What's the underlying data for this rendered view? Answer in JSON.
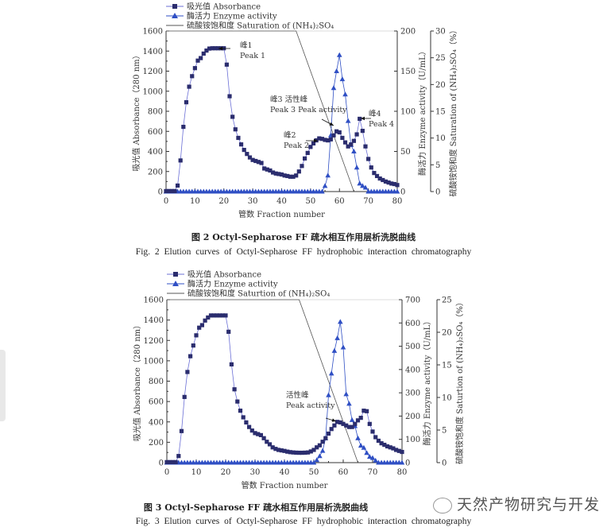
{
  "chart_data": [
    {
      "type": "line",
      "legend": [
        "吸光值 Absorbance",
        "酶活力 Enzyme activity",
        "硫酸铵饱和度 Saturation of (NH₄)₂SO₄"
      ],
      "xlabel": "管数 Fraction number",
      "ylabel": "吸光值 Absorbance（280 nm）",
      "y2label": "酶活力 Enzyme activity（U/mL）",
      "y3label": "硫酸铵饱和度 Saturation of (NH₄)₂SO₄（%）",
      "xlim": [
        0,
        80
      ],
      "xticks": [
        0,
        10,
        20,
        30,
        40,
        50,
        60,
        70,
        80
      ],
      "ylim": [
        0,
        1600
      ],
      "yticks": [
        0,
        200,
        400,
        600,
        800,
        1000,
        1200,
        1400,
        1600
      ],
      "y2lim": [
        0,
        200
      ],
      "y2ticks": [
        0,
        50,
        100,
        150,
        200
      ],
      "y3lim": [
        0,
        30
      ],
      "y3ticks": [
        0,
        5,
        10,
        15,
        20,
        25,
        30
      ],
      "x": [
        0,
        1,
        2,
        3,
        4,
        5,
        6,
        7,
        8,
        9,
        10,
        11,
        12,
        13,
        14,
        15,
        16,
        17,
        18,
        19,
        20,
        21,
        22,
        23,
        24,
        25,
        26,
        27,
        28,
        29,
        30,
        31,
        32,
        33,
        34,
        35,
        36,
        37,
        38,
        39,
        40,
        41,
        42,
        43,
        44,
        45,
        46,
        47,
        48,
        49,
        50,
        51,
        52,
        53,
        54,
        55,
        56,
        57,
        58,
        59,
        60,
        61,
        62,
        63,
        64,
        65,
        66,
        67,
        68,
        69,
        70,
        71,
        72,
        73,
        74,
        75,
        76,
        77,
        78,
        79,
        80
      ],
      "series": [
        {
          "name": "Absorbance",
          "axis": "y",
          "values": [
            5,
            5,
            5,
            5,
            60,
            310,
            645,
            890,
            1045,
            1150,
            1230,
            1305,
            1330,
            1375,
            1405,
            1425,
            1428,
            1428,
            1428,
            1428,
            1428,
            1265,
            950,
            745,
            620,
            535,
            470,
            415,
            375,
            340,
            315,
            305,
            295,
            285,
            230,
            220,
            210,
            190,
            180,
            175,
            170,
            160,
            155,
            148,
            148,
            160,
            200,
            255,
            330,
            385,
            445,
            480,
            510,
            530,
            525,
            515,
            510,
            520,
            560,
            600,
            590,
            535,
            490,
            450,
            470,
            505,
            570,
            725,
            605,
            450,
            325,
            240,
            185,
            155,
            130,
            115,
            100,
            90,
            80,
            75,
            65
          ]
        },
        {
          "name": "Enzyme activity",
          "axis": "y2",
          "values": [
            0,
            0,
            0,
            0,
            0,
            0,
            0,
            0,
            0,
            0,
            0,
            0,
            0,
            0,
            0,
            0,
            0,
            0,
            0,
            0,
            0,
            0,
            0,
            0,
            0,
            0,
            0,
            0,
            0,
            0,
            0,
            0,
            0,
            0,
            0,
            0,
            0,
            0,
            0,
            0,
            0,
            0,
            0,
            0,
            0,
            0,
            0,
            0,
            0,
            0,
            0,
            0,
            0,
            0,
            0,
            7,
            20,
            70,
            129,
            150,
            170,
            140,
            121,
            88,
            58,
            50,
            30,
            10,
            7,
            5,
            0,
            0,
            0,
            0,
            0,
            0,
            0,
            0,
            0,
            0,
            0
          ]
        },
        {
          "name": "Saturation",
          "axis": "y3",
          "points": [
            [
              0,
              30
            ],
            [
              45,
              30
            ],
            [
              65,
              0
            ]
          ]
        }
      ],
      "annotations": [
        {
          "cn": "峰1",
          "en": "Peak 1"
        },
        {
          "cn": "峰3  活性峰",
          "en": "Peak 3 Peak activity"
        },
        {
          "cn": "峰2",
          "en": "Peak 2"
        },
        {
          "cn": "峰4",
          "en": "Peak 4"
        }
      ],
      "caption_cn": "图 2    Octyl-Sepharose FF 疏水相互作用层析洗脱曲线",
      "caption_en": "Fig. 2    Elution curves of Octyl-Sepharose FF hydrophobic interaction chromatography"
    },
    {
      "type": "line",
      "legend": [
        "吸光值 Absorbance",
        "酶活力 Enzyme activity",
        "硫酸铵饱和度 Saturtion of (NH₄)₂SO₄"
      ],
      "xlabel": "管数 Fraction number",
      "ylabel": "吸光值 Absorbance（280 nm）",
      "y2label": "酶活力 Enzyme activity（U/mL）",
      "y3label": "硫酸铵饱和度 Saturtion of (NH₄)₂SO₄（%）",
      "xlim": [
        0,
        80
      ],
      "xticks": [
        0,
        10,
        20,
        30,
        40,
        50,
        60,
        70,
        80
      ],
      "ylim": [
        0,
        1600
      ],
      "yticks": [
        0,
        200,
        400,
        600,
        800,
        1000,
        1200,
        1400,
        1600
      ],
      "y2lim": [
        0,
        700
      ],
      "y2ticks": [
        0,
        100,
        200,
        300,
        400,
        500,
        600,
        700
      ],
      "y3lim": [
        0,
        25
      ],
      "y3ticks": [
        0,
        5,
        10,
        15,
        20,
        25
      ],
      "x": [
        0,
        1,
        2,
        3,
        4,
        5,
        6,
        7,
        8,
        9,
        10,
        11,
        12,
        13,
        14,
        15,
        16,
        17,
        18,
        19,
        20,
        21,
        22,
        23,
        24,
        25,
        26,
        27,
        28,
        29,
        30,
        31,
        32,
        33,
        34,
        35,
        36,
        37,
        38,
        39,
        40,
        41,
        42,
        43,
        44,
        45,
        46,
        47,
        48,
        49,
        50,
        51,
        52,
        53,
        54,
        55,
        56,
        57,
        58,
        59,
        60,
        61,
        62,
        63,
        64,
        65,
        66,
        67,
        68,
        69,
        70,
        71,
        72,
        73,
        74,
        75,
        76,
        77,
        78,
        79,
        80
      ],
      "series": [
        {
          "name": "Absorbance",
          "axis": "y",
          "values": [
            5,
            5,
            5,
            5,
            65,
            310,
            645,
            890,
            1045,
            1150,
            1250,
            1325,
            1350,
            1395,
            1425,
            1445,
            1445,
            1445,
            1445,
            1445,
            1445,
            1285,
            965,
            720,
            600,
            510,
            445,
            395,
            350,
            315,
            290,
            280,
            270,
            240,
            205,
            180,
            150,
            135,
            125,
            120,
            115,
            108,
            103,
            100,
            98,
            97,
            97,
            98,
            100,
            110,
            125,
            150,
            170,
            205,
            240,
            285,
            330,
            365,
            400,
            395,
            380,
            365,
            350,
            350,
            380,
            415,
            440,
            510,
            505,
            380,
            305,
            250,
            215,
            190,
            175,
            160,
            150,
            140,
            125,
            115,
            105
          ]
        },
        {
          "name": "Enzyme activity",
          "axis": "y2",
          "values": [
            0,
            0,
            0,
            0,
            0,
            0,
            0,
            0,
            0,
            0,
            0,
            0,
            0,
            0,
            0,
            0,
            0,
            0,
            0,
            0,
            0,
            0,
            0,
            0,
            0,
            0,
            0,
            0,
            0,
            0,
            0,
            0,
            0,
            0,
            0,
            0,
            0,
            0,
            0,
            0,
            0,
            0,
            0,
            0,
            0,
            0,
            0,
            0,
            0,
            0,
            0,
            11,
            28,
            51,
            105,
            290,
            383,
            480,
            535,
            605,
            495,
            294,
            253,
            183,
            157,
            105,
            73,
            64,
            42,
            25,
            20,
            9,
            0,
            0,
            0,
            0,
            0,
            0,
            0,
            0,
            0
          ]
        },
        {
          "name": "Saturation",
          "axis": "y3",
          "points": [
            [
              0,
              25
            ],
            [
              45,
              25
            ],
            [
              65,
              0
            ]
          ]
        }
      ],
      "annotations": [
        {
          "cn": "活性峰",
          "en": "Peak activity"
        }
      ],
      "caption_cn": "图 3    Octyl-Sepharose FF 疏水相互作用层析洗脱曲线",
      "caption_en": "Fig. 3    Elution curves of Octyl-Sepharose FF hydrophobic interaction chromatography"
    }
  ],
  "watermark": "天然产物研究与开发",
  "colors": {
    "absorbance": "#2b2d6e",
    "absorbance_line": "#6b6fd6",
    "enzyme": "#2f4fc4",
    "saturation": "#555555",
    "axis": "#333333"
  }
}
